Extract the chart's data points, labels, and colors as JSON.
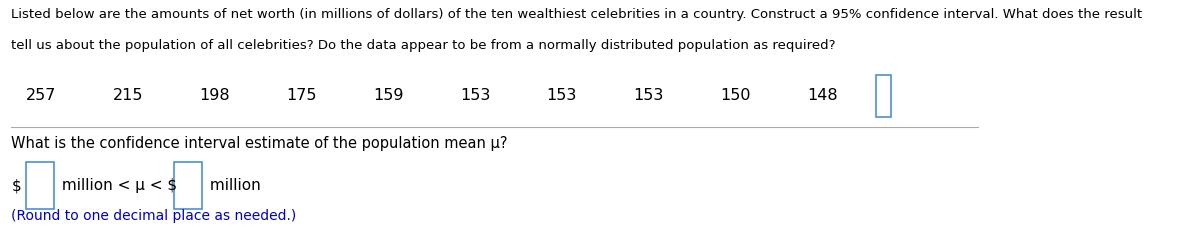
{
  "title_line1": "Listed below are the amounts of net worth (in millions of dollars) of the ten wealthiest celebrities in a country. Construct a 95% confidence interval. What does the result",
  "title_line2": "tell us about the population of all celebrities? Do the data appear to be from a normally distributed population as required?",
  "data_values": [
    "257",
    "215",
    "198",
    "175",
    "159",
    "153",
    "153",
    "153",
    "150",
    "148"
  ],
  "question": "What is the confidence interval estimate of the population mean μ?",
  "formula_prefix": "$",
  "formula_middle": " million < μ < $",
  "formula_suffix": " million",
  "note": "(Round to one decimal place as needed.)",
  "bg_color": "#ffffff",
  "text_color": "#000000",
  "blue_color": "#0000cc",
  "box_color": "#4a90d9",
  "font_size_title": 9.5,
  "font_size_data": 11.5,
  "font_size_question": 10.5,
  "font_size_formula": 11.0,
  "font_size_note": 10.0
}
